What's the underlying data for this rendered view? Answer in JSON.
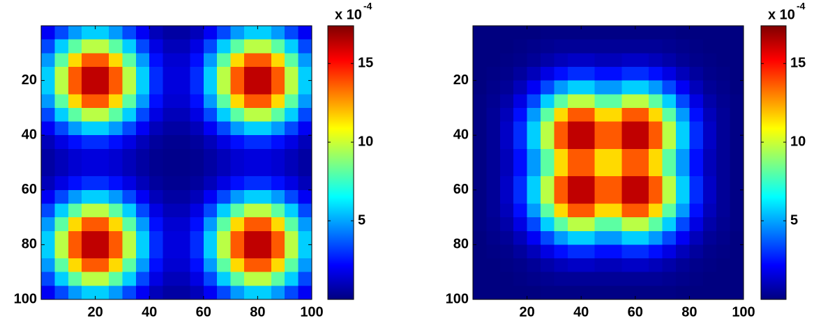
{
  "chart_data": [
    {
      "type": "heatmap",
      "colormap": "jet",
      "reverse_y": true,
      "x": [
        2.5,
        7.5,
        12.5,
        17.5,
        22.5,
        27.5,
        32.5,
        37.5,
        42.5,
        47.5,
        52.5,
        57.5,
        62.5,
        67.5,
        72.5,
        77.5,
        82.5,
        87.5,
        92.5,
        97.5
      ],
      "y": [
        2.5,
        7.5,
        12.5,
        17.5,
        22.5,
        27.5,
        32.5,
        37.5,
        42.5,
        47.5,
        52.5,
        57.5,
        62.5,
        67.5,
        72.5,
        77.5,
        82.5,
        87.5,
        92.5,
        97.5
      ],
      "values": [
        [
          2.0,
          3.4,
          4.8,
          5.7,
          5.7,
          4.8,
          3.4,
          2.0,
          1.0,
          0.6,
          0.6,
          1.0,
          2.0,
          3.4,
          4.8,
          5.7,
          5.7,
          4.8,
          3.4,
          2.0
        ],
        [
          3.4,
          5.7,
          8.1,
          9.7,
          9.7,
          8.1,
          5.7,
          3.4,
          1.7,
          1.0,
          1.0,
          1.7,
          3.4,
          5.7,
          8.1,
          9.7,
          9.7,
          8.1,
          5.7,
          3.4
        ],
        [
          4.8,
          8.1,
          11.5,
          13.7,
          13.7,
          11.5,
          8.1,
          4.8,
          2.4,
          1.4,
          1.4,
          2.4,
          4.8,
          8.1,
          11.5,
          13.7,
          13.7,
          11.5,
          8.1,
          4.8
        ],
        [
          5.7,
          9.7,
          13.7,
          16.3,
          16.3,
          13.7,
          9.7,
          5.7,
          2.9,
          1.6,
          1.6,
          2.9,
          5.7,
          9.7,
          13.7,
          16.3,
          16.3,
          13.7,
          9.7,
          5.7
        ],
        [
          5.7,
          9.7,
          13.7,
          16.3,
          16.3,
          13.7,
          9.7,
          5.7,
          2.9,
          1.6,
          1.6,
          2.9,
          5.7,
          9.7,
          13.7,
          16.3,
          16.3,
          13.7,
          9.7,
          5.7
        ],
        [
          4.8,
          8.1,
          11.5,
          13.7,
          13.7,
          11.5,
          8.1,
          4.8,
          2.4,
          1.4,
          1.4,
          2.4,
          4.8,
          8.1,
          11.5,
          13.7,
          13.7,
          11.5,
          8.1,
          4.8
        ],
        [
          3.4,
          5.7,
          8.1,
          9.7,
          9.7,
          8.1,
          5.7,
          3.4,
          1.7,
          1.0,
          1.0,
          1.7,
          3.4,
          5.7,
          8.1,
          9.7,
          9.7,
          8.1,
          5.7,
          3.4
        ],
        [
          2.0,
          3.4,
          4.8,
          5.7,
          5.7,
          4.8,
          3.4,
          2.0,
          1.0,
          0.6,
          0.6,
          1.0,
          2.0,
          3.4,
          4.8,
          5.7,
          5.7,
          4.8,
          3.4,
          2.0
        ],
        [
          1.0,
          1.7,
          2.4,
          2.9,
          2.9,
          2.4,
          1.7,
          1.0,
          0.5,
          0.3,
          0.3,
          0.5,
          1.0,
          1.7,
          2.4,
          2.9,
          2.9,
          2.4,
          1.7,
          1.0
        ],
        [
          0.6,
          1.0,
          1.4,
          1.6,
          1.6,
          1.4,
          1.0,
          0.6,
          0.3,
          0.2,
          0.2,
          0.3,
          0.6,
          1.0,
          1.4,
          1.6,
          1.6,
          1.4,
          1.0,
          0.6
        ],
        [
          0.6,
          1.0,
          1.4,
          1.6,
          1.6,
          1.4,
          1.0,
          0.6,
          0.3,
          0.2,
          0.2,
          0.3,
          0.6,
          1.0,
          1.4,
          1.6,
          1.6,
          1.4,
          1.0,
          0.6
        ],
        [
          1.0,
          1.7,
          2.4,
          2.9,
          2.9,
          2.4,
          1.7,
          1.0,
          0.5,
          0.3,
          0.3,
          0.5,
          1.0,
          1.7,
          2.4,
          2.9,
          2.9,
          2.4,
          1.7,
          1.0
        ],
        [
          2.0,
          3.4,
          4.8,
          5.7,
          5.7,
          4.8,
          3.4,
          2.0,
          1.0,
          0.6,
          0.6,
          1.0,
          2.0,
          3.4,
          4.8,
          5.7,
          5.7,
          4.8,
          3.4,
          2.0
        ],
        [
          3.4,
          5.7,
          8.1,
          9.7,
          9.7,
          8.1,
          5.7,
          3.4,
          1.7,
          1.0,
          1.0,
          1.7,
          3.4,
          5.7,
          8.1,
          9.7,
          9.7,
          8.1,
          5.7,
          3.4
        ],
        [
          4.8,
          8.1,
          11.5,
          13.7,
          13.7,
          11.5,
          8.1,
          4.8,
          2.4,
          1.4,
          1.4,
          2.4,
          4.8,
          8.1,
          11.5,
          13.7,
          13.7,
          11.5,
          8.1,
          4.8
        ],
        [
          5.7,
          9.7,
          13.7,
          16.3,
          16.3,
          13.7,
          9.7,
          5.7,
          2.9,
          1.6,
          1.6,
          2.9,
          5.7,
          9.7,
          13.7,
          16.3,
          16.3,
          13.7,
          9.7,
          5.7
        ],
        [
          5.7,
          9.7,
          13.7,
          16.3,
          16.3,
          13.7,
          9.7,
          5.7,
          2.9,
          1.6,
          1.6,
          2.9,
          5.7,
          9.7,
          13.7,
          16.3,
          16.3,
          13.7,
          9.7,
          5.7
        ],
        [
          4.8,
          8.1,
          11.5,
          13.7,
          13.7,
          11.5,
          8.1,
          4.8,
          2.4,
          1.4,
          1.4,
          2.4,
          4.8,
          8.1,
          11.5,
          13.7,
          13.7,
          11.5,
          8.1,
          4.8
        ],
        [
          3.4,
          5.7,
          8.1,
          9.7,
          9.7,
          8.1,
          5.7,
          3.4,
          1.7,
          1.0,
          1.0,
          1.7,
          3.4,
          5.7,
          8.1,
          9.7,
          9.7,
          8.1,
          5.7,
          3.4
        ],
        [
          2.0,
          3.4,
          4.8,
          5.7,
          5.7,
          4.8,
          3.4,
          2.0,
          1.0,
          0.6,
          0.6,
          1.0,
          2.0,
          3.4,
          4.8,
          5.7,
          5.7,
          4.8,
          3.4,
          2.0
        ]
      ],
      "xlim": [
        0,
        100
      ],
      "ylim": [
        0,
        100
      ],
      "xticks": [
        20,
        40,
        60,
        80,
        100
      ],
      "yticks": [
        20,
        40,
        60,
        80,
        100
      ],
      "clim": [
        0,
        17.4
      ],
      "cticks": [
        5,
        10,
        15
      ],
      "colorbar_multiplier": "x 10",
      "colorbar_exponent": "-4"
    },
    {
      "type": "heatmap",
      "colormap": "jet",
      "reverse_y": true,
      "x": [
        2.5,
        7.5,
        12.5,
        17.5,
        22.5,
        27.5,
        32.5,
        37.5,
        42.5,
        47.5,
        52.5,
        57.5,
        62.5,
        67.5,
        72.5,
        77.5,
        82.5,
        87.5,
        92.5,
        97.5
      ],
      "y": [
        2.5,
        7.5,
        12.5,
        17.5,
        22.5,
        27.5,
        32.5,
        37.5,
        42.5,
        47.5,
        52.5,
        57.5,
        62.5,
        67.5,
        72.5,
        77.5,
        82.5,
        87.5,
        92.5,
        97.5
      ],
      "values": [
        [
          0.0,
          0.0,
          0.0,
          0.0,
          0.0,
          0.1,
          0.1,
          0.1,
          0.1,
          0.1,
          0.1,
          0.1,
          0.1,
          0.1,
          0.1,
          0.0,
          0.0,
          0.0,
          0.0,
          0.0
        ],
        [
          0.0,
          0.0,
          0.0,
          0.1,
          0.2,
          0.3,
          0.4,
          0.4,
          0.4,
          0.4,
          0.4,
          0.4,
          0.4,
          0.4,
          0.3,
          0.2,
          0.1,
          0.0,
          0.0,
          0.0
        ],
        [
          0.0,
          0.0,
          0.1,
          0.2,
          0.4,
          0.7,
          1.0,
          1.2,
          1.2,
          1.0,
          1.0,
          1.2,
          1.2,
          1.0,
          0.7,
          0.4,
          0.2,
          0.1,
          0.0,
          0.0
        ],
        [
          0.0,
          0.1,
          0.2,
          0.5,
          1.0,
          1.7,
          2.4,
          2.9,
          2.9,
          2.4,
          2.4,
          2.9,
          2.9,
          2.4,
          1.7,
          1.0,
          0.5,
          0.2,
          0.1,
          0.0
        ],
        [
          0.0,
          0.2,
          0.4,
          1.0,
          2.0,
          3.4,
          4.8,
          5.7,
          5.7,
          4.8,
          4.8,
          5.7,
          5.7,
          4.8,
          3.4,
          2.0,
          1.0,
          0.4,
          0.2,
          0.0
        ],
        [
          0.1,
          0.3,
          0.7,
          1.7,
          3.4,
          5.7,
          8.1,
          9.7,
          9.7,
          8.1,
          8.1,
          9.7,
          9.7,
          8.1,
          5.7,
          3.4,
          1.7,
          0.7,
          0.3,
          0.1
        ],
        [
          0.1,
          0.4,
          1.0,
          2.4,
          4.8,
          8.1,
          11.5,
          13.7,
          13.7,
          11.5,
          11.5,
          13.7,
          13.7,
          11.5,
          8.1,
          4.8,
          2.4,
          1.0,
          0.4,
          0.1
        ],
        [
          0.1,
          0.4,
          1.2,
          2.9,
          5.7,
          9.7,
          13.7,
          16.3,
          16.3,
          13.7,
          13.7,
          16.3,
          16.3,
          13.7,
          9.7,
          5.7,
          2.9,
          1.2,
          0.4,
          0.1
        ],
        [
          0.1,
          0.4,
          1.2,
          2.9,
          5.7,
          9.7,
          13.7,
          16.3,
          16.3,
          13.7,
          13.7,
          16.3,
          16.3,
          13.7,
          9.7,
          5.7,
          2.9,
          1.2,
          0.4,
          0.1
        ],
        [
          0.1,
          0.4,
          1.0,
          2.4,
          4.8,
          8.1,
          11.5,
          13.7,
          13.7,
          11.5,
          11.5,
          13.7,
          13.7,
          11.5,
          8.1,
          4.8,
          2.4,
          1.0,
          0.4,
          0.1
        ],
        [
          0.1,
          0.4,
          1.0,
          2.4,
          4.8,
          8.1,
          11.5,
          13.7,
          13.7,
          11.5,
          11.5,
          13.7,
          13.7,
          11.5,
          8.1,
          4.8,
          2.4,
          1.0,
          0.4,
          0.1
        ],
        [
          0.1,
          0.4,
          1.2,
          2.9,
          5.7,
          9.7,
          13.7,
          16.3,
          16.3,
          13.7,
          13.7,
          16.3,
          16.3,
          13.7,
          9.7,
          5.7,
          2.9,
          1.2,
          0.4,
          0.1
        ],
        [
          0.1,
          0.4,
          1.2,
          2.9,
          5.7,
          9.7,
          13.7,
          16.3,
          16.3,
          13.7,
          13.7,
          16.3,
          16.3,
          13.7,
          9.7,
          5.7,
          2.9,
          1.2,
          0.4,
          0.1
        ],
        [
          0.1,
          0.4,
          1.0,
          2.4,
          4.8,
          8.1,
          11.5,
          13.7,
          13.7,
          11.5,
          11.5,
          13.7,
          13.7,
          11.5,
          8.1,
          4.8,
          2.4,
          1.0,
          0.4,
          0.1
        ],
        [
          0.1,
          0.3,
          0.7,
          1.7,
          3.4,
          5.7,
          8.1,
          9.7,
          9.7,
          8.1,
          8.1,
          9.7,
          9.7,
          8.1,
          5.7,
          3.4,
          1.7,
          0.7,
          0.3,
          0.1
        ],
        [
          0.0,
          0.2,
          0.4,
          1.0,
          2.0,
          3.4,
          4.8,
          5.7,
          5.7,
          4.8,
          4.8,
          5.7,
          5.7,
          4.8,
          3.4,
          2.0,
          1.0,
          0.4,
          0.2,
          0.0
        ],
        [
          0.0,
          0.1,
          0.2,
          0.5,
          1.0,
          1.7,
          2.4,
          2.9,
          2.9,
          2.4,
          2.4,
          2.9,
          2.9,
          2.4,
          1.7,
          1.0,
          0.5,
          0.2,
          0.1,
          0.0
        ],
        [
          0.0,
          0.0,
          0.1,
          0.2,
          0.4,
          0.7,
          1.0,
          1.2,
          1.2,
          1.0,
          1.0,
          1.2,
          1.2,
          1.0,
          0.7,
          0.4,
          0.2,
          0.1,
          0.0,
          0.0
        ],
        [
          0.0,
          0.0,
          0.0,
          0.1,
          0.2,
          0.3,
          0.4,
          0.4,
          0.4,
          0.4,
          0.4,
          0.4,
          0.4,
          0.4,
          0.3,
          0.2,
          0.1,
          0.0,
          0.0,
          0.0
        ],
        [
          0.0,
          0.0,
          0.0,
          0.0,
          0.0,
          0.1,
          0.1,
          0.1,
          0.1,
          0.1,
          0.1,
          0.1,
          0.1,
          0.1,
          0.1,
          0.0,
          0.0,
          0.0,
          0.0,
          0.0
        ]
      ],
      "xlim": [
        0,
        100
      ],
      "ylim": [
        0,
        100
      ],
      "xticks": [
        20,
        40,
        60,
        80,
        100
      ],
      "yticks": [
        20,
        40,
        60,
        80,
        100
      ],
      "clim": [
        0,
        17.4
      ],
      "cticks": [
        5,
        10,
        15
      ],
      "colorbar_multiplier": "x 10",
      "colorbar_exponent": "-4"
    }
  ]
}
